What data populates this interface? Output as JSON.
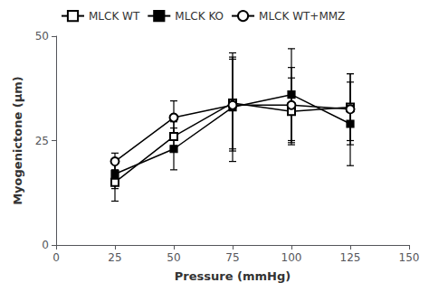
{
  "chart_data": {
    "type": "line",
    "x": [
      25,
      50,
      75,
      100,
      125
    ],
    "xlabel": "Pressure (mmHg)",
    "ylabel": "Myogenictone (μm)",
    "xlim": [
      0,
      150
    ],
    "ylim": [
      0,
      50
    ],
    "xticks": [
      0,
      25,
      50,
      75,
      100,
      125,
      150
    ],
    "yticks": [
      0,
      25,
      50
    ],
    "grid": false,
    "legend": "upper left",
    "series": [
      {
        "name": "MLCK WT",
        "values": [
          15.0,
          26.0,
          34.0,
          32.0,
          33.0
        ],
        "yerr": [
          4.5,
          3.5,
          11.0,
          8.0,
          8.0
        ],
        "marker": "open_square",
        "color": "#000000"
      },
      {
        "name": "MLCK KO",
        "values": [
          17.0,
          23.0,
          33.0,
          36.0,
          29.0
        ],
        "yerr": [
          3.5,
          5.0,
          13.0,
          11.0,
          10.0
        ],
        "marker": "square",
        "color": "#000000"
      },
      {
        "name": "MLCK WT+MMZ",
        "values": [
          20.0,
          30.5,
          33.5,
          33.5,
          32.5
        ],
        "yerr": [
          2.0,
          4.0,
          11.0,
          9.0,
          8.5
        ],
        "marker": "open_circle",
        "color": "#000000"
      }
    ]
  }
}
